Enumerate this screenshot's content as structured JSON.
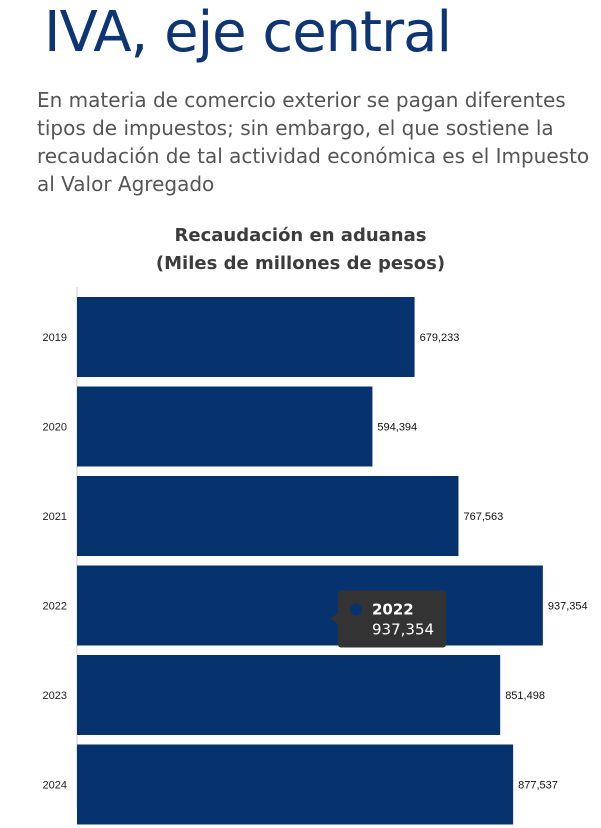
{
  "headline": "IVA, eje central",
  "intro": "En materia de comercio exterior se pagan diferentes tipos de impuestos; sin embargo, el que sostiene la recaudación de tal actividad económica es el Impuesto al Valor Agregado",
  "chart_data": {
    "type": "bar",
    "orientation": "horizontal",
    "title": "Recaudación en aduanas",
    "subtitle": "(Miles de millones de pesos)",
    "categories": [
      "2019",
      "2020",
      "2021",
      "2022",
      "2023",
      "2024"
    ],
    "values": [
      679233,
      594394,
      767563,
      937354,
      851498,
      877537
    ],
    "value_labels": [
      "679,233",
      "594,394",
      "767,563",
      "937,354",
      "851,498",
      "877,537"
    ],
    "xlim": [
      0,
      1000000
    ],
    "grid": false,
    "bar_color": "#06336e",
    "tooltip": {
      "category": "2022",
      "value_label": "937,354",
      "background": "#333333"
    }
  }
}
